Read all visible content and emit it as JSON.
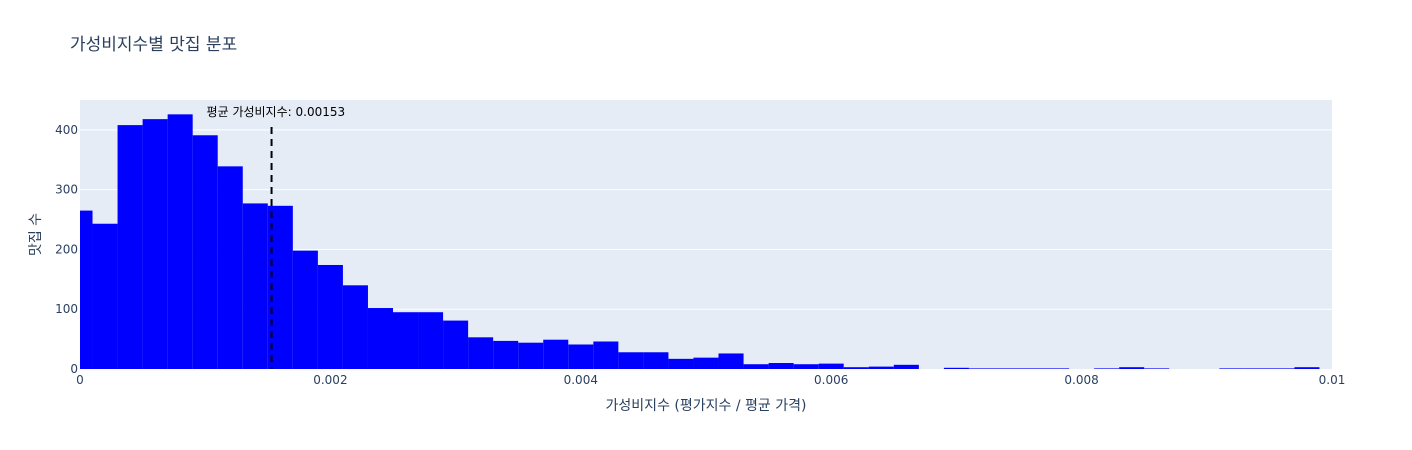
{
  "chart_data": {
    "type": "bar",
    "title": "가성비지수별 맛집 분포",
    "xlabel": "가성비지수 (평가지수 / 평균 가격)",
    "ylabel": "맛집 수",
    "xlim": [
      0,
      0.01
    ],
    "ylim": [
      0,
      450
    ],
    "x_ticks": [
      0,
      0.002,
      0.004,
      0.006,
      0.008,
      0.01
    ],
    "x_tick_labels": [
      "0",
      "0.002",
      "0.004",
      "0.006",
      "0.008",
      "0.01"
    ],
    "y_ticks": [
      0,
      100,
      200,
      300,
      400
    ],
    "y_tick_labels": [
      "0",
      "100",
      "200",
      "300",
      "400"
    ],
    "bin_width": 0.0002,
    "bins_start": [
      0,
      0.0001,
      0.0003,
      0.0005,
      0.0007,
      0.0009,
      0.0011,
      0.0013,
      0.0015,
      0.0017,
      0.0019,
      0.0021,
      0.0023,
      0.0025,
      0.0027,
      0.0029,
      0.0031,
      0.0033,
      0.0035,
      0.0037,
      0.0039,
      0.0041,
      0.0043,
      0.0045,
      0.0047,
      0.0049,
      0.0051,
      0.0053,
      0.0055,
      0.0057,
      0.0059,
      0.0061,
      0.0063,
      0.0065,
      0.0067,
      0.0069,
      0.0071,
      0.0073,
      0.0075,
      0.0077,
      0.0079,
      0.0081,
      0.0083,
      0.0085,
      0.0087,
      0.0089,
      0.0091,
      0.0093,
      0.0095,
      0.0097
    ],
    "bins_end": [
      0.0001,
      0.0003,
      0.0005,
      0.0007,
      0.0009,
      0.0011,
      0.0013,
      0.0015,
      0.0017,
      0.0019,
      0.0021,
      0.0023,
      0.0025,
      0.0027,
      0.0029,
      0.0031,
      0.0033,
      0.0035,
      0.0037,
      0.0039,
      0.0041,
      0.0043,
      0.0045,
      0.0047,
      0.0049,
      0.0051,
      0.0053,
      0.0055,
      0.0057,
      0.0059,
      0.0061,
      0.0063,
      0.0065,
      0.0067,
      0.0069,
      0.0071,
      0.0073,
      0.0075,
      0.0077,
      0.0079,
      0.0081,
      0.0083,
      0.0085,
      0.0087,
      0.0089,
      0.0091,
      0.0093,
      0.0095,
      0.0097,
      0.0099
    ],
    "values": [
      265,
      243,
      408,
      418,
      426,
      391,
      339,
      277,
      273,
      198,
      174,
      140,
      102,
      95,
      95,
      81,
      53,
      47,
      44,
      49,
      41,
      46,
      28,
      28,
      17,
      19,
      26,
      8,
      10,
      8,
      9,
      3,
      4,
      7,
      0,
      2,
      1,
      1,
      1,
      1,
      0,
      1,
      3,
      1,
      0,
      0,
      1,
      1,
      1,
      3
    ],
    "bar_color": "#0000ff",
    "mean_line": {
      "x": 0.00153,
      "label": "평균 가성비지수: 0.00153",
      "color": "#000000",
      "style": "dashed"
    },
    "plot_background": "#e5ecf6",
    "grid": true,
    "legend": "none"
  }
}
